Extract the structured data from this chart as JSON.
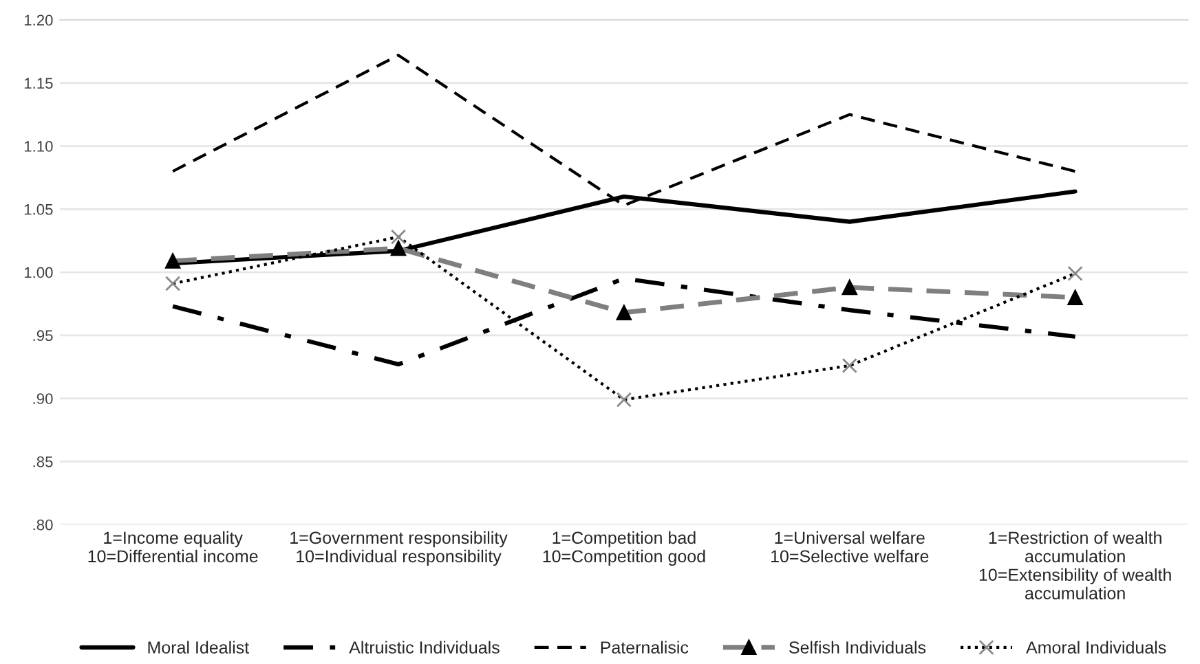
{
  "chart_data": {
    "type": "line",
    "categories": [
      "1=Income equality\n10=Differential income",
      "1=Government responsibility\n10=Individual responsibility",
      "1=Competition bad\n10=Competition good",
      "1=Universal welfare\n10=Selective welfare",
      "1=Restriction of wealth\naccumulation\n10=Extensibility of wealth\naccumulation"
    ],
    "series": [
      {
        "name": "Moral Idealist",
        "color": "#000000",
        "line_style": "solid",
        "marker": "none",
        "values": [
          1.007,
          1.017,
          1.06,
          1.04,
          1.064
        ]
      },
      {
        "name": "Altruistic Individuals",
        "color": "#000000",
        "line_style": "dashdot",
        "marker": "none",
        "values": [
          0.973,
          0.927,
          0.995,
          0.97,
          0.949
        ]
      },
      {
        "name": "Paternalisic",
        "color": "#000000",
        "line_style": "dashed",
        "marker": "none",
        "values": [
          1.08,
          1.172,
          1.053,
          1.125,
          1.08
        ]
      },
      {
        "name": "Selfish Individuals",
        "color": "#7f7f7f",
        "line_style": "dashed",
        "marker": "triangle",
        "values": [
          1.009,
          1.019,
          0.968,
          0.988,
          0.98
        ]
      },
      {
        "name": "Amoral Individuals",
        "color": "#000000",
        "line_style": "dotted",
        "marker": "cross",
        "values": [
          0.991,
          1.028,
          0.899,
          0.926,
          0.999
        ]
      }
    ],
    "ylim": [
      0.8,
      1.2
    ],
    "yticks": [
      {
        "value": 0.8,
        "label": ".80"
      },
      {
        "value": 0.85,
        "label": ".85"
      },
      {
        "value": 0.9,
        "label": ".90"
      },
      {
        "value": 0.95,
        "label": ".95"
      },
      {
        "value": 1.0,
        "label": "1.00"
      },
      {
        "value": 1.05,
        "label": "1.05"
      },
      {
        "value": 1.1,
        "label": "1.10"
      },
      {
        "value": 1.15,
        "label": "1.15"
      },
      {
        "value": 1.2,
        "label": "1.20"
      }
    ],
    "grid": "y",
    "legend": "bottom"
  }
}
